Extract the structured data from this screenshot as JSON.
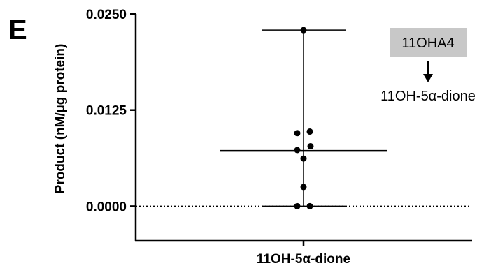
{
  "panel_label": "E",
  "chart_data": {
    "type": "scatter",
    "ylabel": "Product (nM/µg protein)",
    "categories": [
      "11OH-5α-dione"
    ],
    "yticks": [
      "0.0000",
      "0.0125",
      "0.0250"
    ],
    "ylim": [
      -0.0045,
      0.025
    ],
    "points": [
      0.0229,
      0.0095,
      0.0097,
      0.0078,
      0.0073,
      0.0062,
      0.0025,
      0.0,
      0.0
    ],
    "median": 0.0072,
    "range": [
      0.0,
      0.0229
    ],
    "reference_line": 0.0,
    "grid": false,
    "annotation": {
      "box_text": "11OHA4",
      "product_text": "11OH-5α-dione",
      "colors": {
        "box_fill": "#c8c8c8",
        "text": "#000000"
      }
    }
  }
}
